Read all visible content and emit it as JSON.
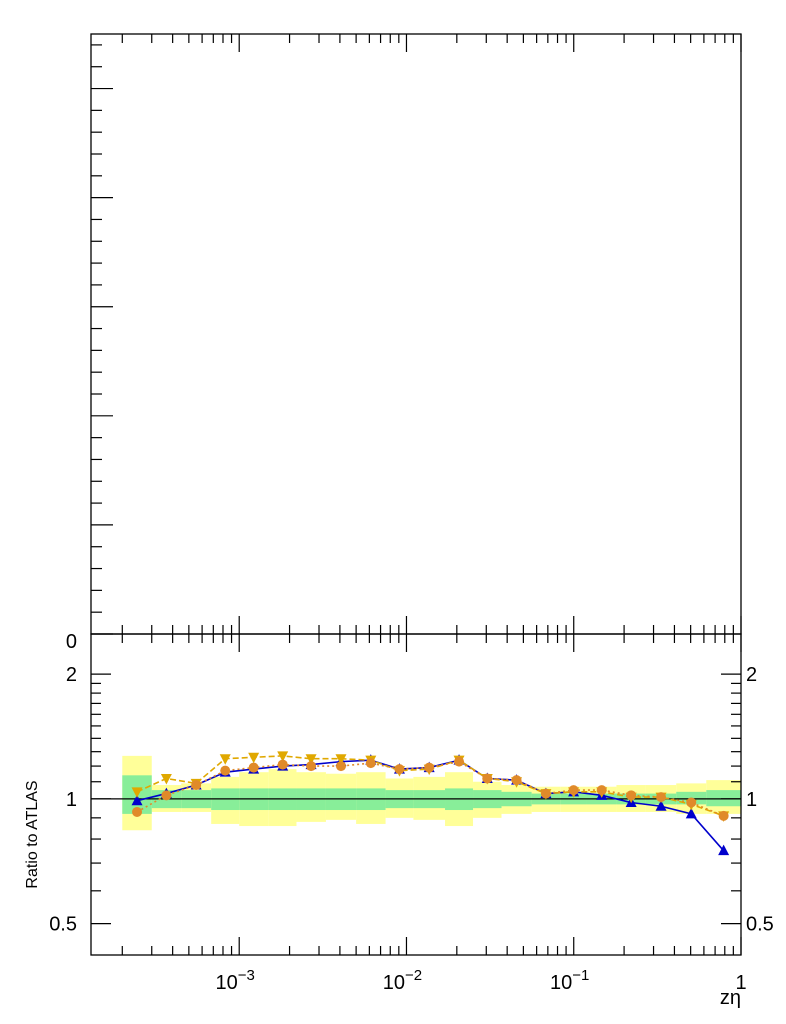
{
  "chart_data": [
    {
      "type": "line",
      "panel": "main",
      "title": "",
      "xlabel": "",
      "ylabel": "",
      "x_scale": "log",
      "xlim": [
        0.00013,
        1.0
      ],
      "ylim": [
        0,
        5.5
      ],
      "y_tick_labels": [
        {
          "value": 0,
          "label": "0"
        }
      ],
      "series": []
    },
    {
      "type": "line",
      "panel": "ratio",
      "xlabel": "zη",
      "ylabel": "Ratio to ATLAS",
      "x_scale": "log",
      "y_scale": "log",
      "xlim": [
        0.00013,
        1.0
      ],
      "ylim": [
        0.42,
        2.5
      ],
      "x_tick_labels": [
        {
          "value": 0.001,
          "base": "10",
          "exp": "−3"
        },
        {
          "value": 0.01,
          "base": "10",
          "exp": "−2"
        },
        {
          "value": 0.1,
          "base": "10",
          "exp": "−1"
        },
        {
          "value": 1,
          "base": "1",
          "exp": ""
        }
      ],
      "y_tick_labels": [
        {
          "value": 0.5,
          "label": "0.5"
        },
        {
          "value": 1,
          "label": "1"
        },
        {
          "value": 2,
          "label": "2"
        }
      ],
      "reference_line": 1,
      "bins": [
        {
          "lo": 0.0002,
          "hi": 0.0003,
          "x": 0.000245,
          "stat": [
            0.92,
            1.14
          ],
          "total": [
            0.84,
            1.27
          ]
        },
        {
          "lo": 0.0003,
          "hi": 0.00045,
          "x": 0.000367,
          "stat": [
            0.95,
            1.05
          ],
          "total": [
            0.93,
            1.08
          ]
        },
        {
          "lo": 0.00045,
          "hi": 0.00068,
          "x": 0.000553,
          "stat": [
            0.95,
            1.05
          ],
          "total": [
            0.93,
            1.09
          ]
        },
        {
          "lo": 0.00068,
          "hi": 0.001,
          "x": 0.000825,
          "stat": [
            0.94,
            1.06
          ],
          "total": [
            0.87,
            1.13
          ]
        },
        {
          "lo": 0.001,
          "hi": 0.0015,
          "x": 0.00122,
          "stat": [
            0.94,
            1.06
          ],
          "total": [
            0.86,
            1.16
          ]
        },
        {
          "lo": 0.0015,
          "hi": 0.0022,
          "x": 0.00182,
          "stat": [
            0.94,
            1.06
          ],
          "total": [
            0.86,
            1.18
          ]
        },
        {
          "lo": 0.0022,
          "hi": 0.0033,
          "x": 0.00269,
          "stat": [
            0.94,
            1.06
          ],
          "total": [
            0.88,
            1.16
          ]
        },
        {
          "lo": 0.0033,
          "hi": 0.005,
          "x": 0.00406,
          "stat": [
            0.94,
            1.06
          ],
          "total": [
            0.89,
            1.15
          ]
        },
        {
          "lo": 0.005,
          "hi": 0.0075,
          "x": 0.00612,
          "stat": [
            0.94,
            1.06
          ],
          "total": [
            0.87,
            1.16
          ]
        },
        {
          "lo": 0.0075,
          "hi": 0.011,
          "x": 0.00908,
          "stat": [
            0.95,
            1.05
          ],
          "total": [
            0.9,
            1.12
          ]
        },
        {
          "lo": 0.011,
          "hi": 0.017,
          "x": 0.01367,
          "stat": [
            0.95,
            1.05
          ],
          "total": [
            0.89,
            1.13
          ]
        },
        {
          "lo": 0.017,
          "hi": 0.025,
          "x": 0.02062,
          "stat": [
            0.94,
            1.06
          ],
          "total": [
            0.86,
            1.16
          ]
        },
        {
          "lo": 0.025,
          "hi": 0.037,
          "x": 0.03041,
          "stat": [
            0.95,
            1.05
          ],
          "total": [
            0.9,
            1.1
          ]
        },
        {
          "lo": 0.037,
          "hi": 0.056,
          "x": 0.04552,
          "stat": [
            0.96,
            1.04
          ],
          "total": [
            0.92,
            1.08
          ]
        },
        {
          "lo": 0.056,
          "hi": 0.083,
          "x": 0.06818,
          "stat": [
            0.97,
            1.03
          ],
          "total": [
            0.93,
            1.07
          ]
        },
        {
          "lo": 0.083,
          "hi": 0.12,
          "x": 0.0998,
          "stat": [
            0.97,
            1.03
          ],
          "total": [
            0.93,
            1.07
          ]
        },
        {
          "lo": 0.12,
          "hi": 0.18,
          "x": 0.147,
          "stat": [
            0.97,
            1.03
          ],
          "total": [
            0.93,
            1.07
          ]
        },
        {
          "lo": 0.18,
          "hi": 0.27,
          "x": 0.2205,
          "stat": [
            0.97,
            1.03
          ],
          "total": [
            0.93,
            1.08
          ]
        },
        {
          "lo": 0.27,
          "hi": 0.41,
          "x": 0.3327,
          "stat": [
            0.97,
            1.03
          ],
          "total": [
            0.93,
            1.08
          ]
        },
        {
          "lo": 0.41,
          "hi": 0.62,
          "x": 0.5042,
          "stat": [
            0.97,
            1.04
          ],
          "total": [
            0.92,
            1.09
          ]
        },
        {
          "lo": 0.62,
          "hi": 1.0,
          "x": 0.7874,
          "stat": [
            0.96,
            1.05
          ],
          "total": [
            0.92,
            1.11
          ]
        }
      ],
      "series": [
        {
          "color": "#0000cc",
          "marker": "triangle-up",
          "line": "solid",
          "values": [
            0.99,
            1.03,
            1.08,
            1.16,
            1.18,
            1.2,
            1.21,
            1.23,
            1.24,
            1.18,
            1.19,
            1.24,
            1.12,
            1.11,
            1.03,
            1.04,
            1.02,
            0.98,
            0.96,
            0.92,
            0.75
          ]
        },
        {
          "color": "#e0a800",
          "marker": "triangle-down",
          "line": "dashed",
          "values": [
            1.04,
            1.12,
            1.09,
            1.25,
            1.26,
            1.27,
            1.25,
            1.25,
            1.24,
            1.17,
            1.18,
            1.24,
            1.12,
            1.1,
            1.03,
            1.04,
            1.04,
            1.01,
            1.01,
            0.97,
            0.91
          ]
        },
        {
          "color": "#e08a2a",
          "marker": "circle",
          "line": "dotted",
          "values": [
            0.93,
            1.02,
            1.08,
            1.17,
            1.19,
            1.21,
            1.2,
            1.2,
            1.22,
            1.18,
            1.19,
            1.23,
            1.12,
            1.11,
            1.03,
            1.05,
            1.05,
            1.02,
            1.01,
            0.98,
            0.91
          ]
        }
      ],
      "colors": {
        "stat_band": "#88ee99",
        "total_band": "#ffff99"
      }
    }
  ]
}
